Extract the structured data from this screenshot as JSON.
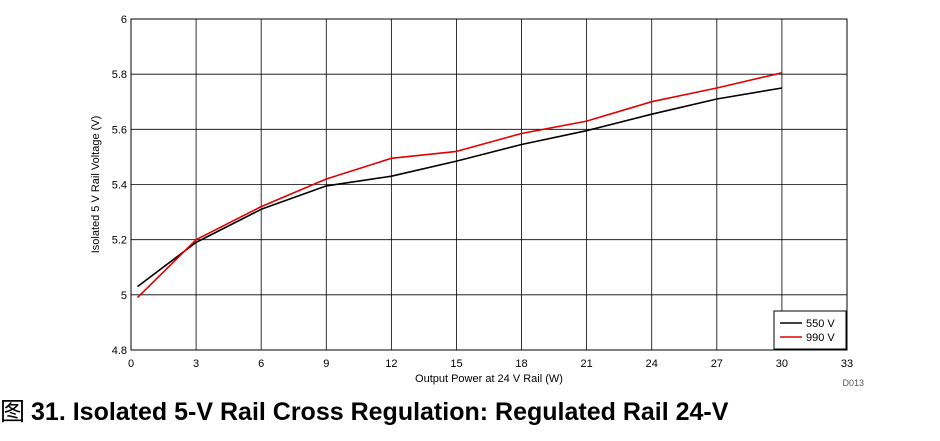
{
  "chart_data": {
    "type": "line",
    "xlabel": "Output Power at 24 V Rail (W)",
    "ylabel": "Isolated 5 V Rail Voltage (V)",
    "xlim": [
      0,
      33
    ],
    "ylim": [
      4.8,
      6
    ],
    "xticks": [
      0,
      3,
      6,
      9,
      12,
      15,
      18,
      21,
      24,
      27,
      30,
      33
    ],
    "yticks": [
      4.8,
      5,
      5.2,
      5.4,
      5.6,
      5.8,
      6
    ],
    "ytick_labels": [
      "4.8",
      "5",
      "5.2",
      "5.4",
      "5.6",
      "5.8",
      "6"
    ],
    "grid": true,
    "legend_position": "bottom-right",
    "series": [
      {
        "name": "550 V",
        "color": "#000000",
        "x": [
          0.3,
          3,
          6,
          9,
          12,
          15,
          18,
          21,
          24,
          27,
          30
        ],
        "y": [
          5.03,
          5.19,
          5.31,
          5.395,
          5.43,
          5.485,
          5.545,
          5.595,
          5.655,
          5.71,
          5.75
        ]
      },
      {
        "name": "990 V",
        "color": "#e00000",
        "x": [
          0.3,
          3,
          6,
          9,
          12,
          15,
          18,
          21,
          24,
          27,
          30
        ],
        "y": [
          4.99,
          5.2,
          5.32,
          5.42,
          5.495,
          5.52,
          5.585,
          5.63,
          5.7,
          5.75,
          5.805
        ]
      }
    ],
    "figure_id": "D013"
  },
  "caption": {
    "prefix": "图",
    "text": "31. Isolated 5-V Rail Cross Regulation: Regulated Rail 24-V"
  }
}
